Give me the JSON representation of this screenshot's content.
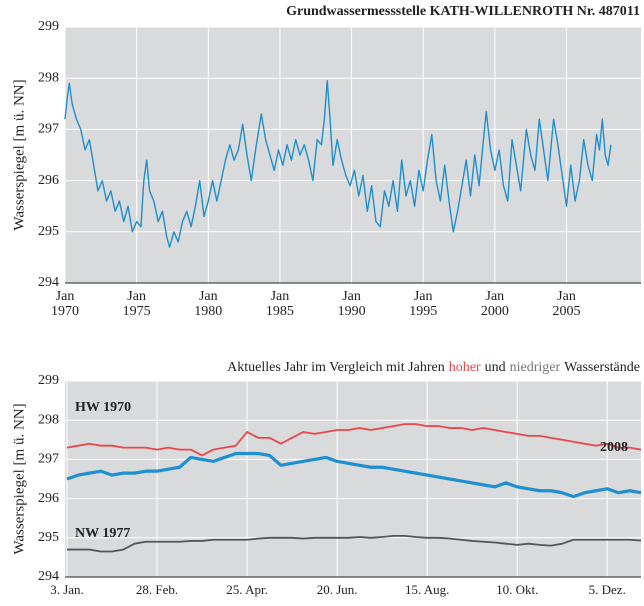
{
  "chart_data": [
    {
      "type": "line",
      "title": "Grundwassermessstelle KATH-WILLENROTH  Nr. 487011",
      "y_label": "Wasserspiegel  [m ü. NN]",
      "x": [
        1970.0,
        1970.15,
        1970.3,
        1970.5,
        1970.8,
        1971.1,
        1971.4,
        1971.7,
        1972.0,
        1972.3,
        1972.6,
        1972.9,
        1973.2,
        1973.5,
        1973.8,
        1974.1,
        1974.4,
        1974.7,
        1975.0,
        1975.3,
        1975.5,
        1975.7,
        1975.9,
        1976.2,
        1976.5,
        1976.8,
        1977.1,
        1977.3,
        1977.6,
        1977.9,
        1978.2,
        1978.5,
        1978.8,
        1979.1,
        1979.4,
        1979.7,
        1980.0,
        1980.3,
        1980.6,
        1980.9,
        1981.2,
        1981.5,
        1981.8,
        1982.1,
        1982.4,
        1982.7,
        1983.0,
        1983.3,
        1983.7,
        1984.0,
        1984.3,
        1984.6,
        1984.9,
        1985.2,
        1985.5,
        1985.8,
        1986.1,
        1986.4,
        1986.7,
        1987.0,
        1987.3,
        1987.6,
        1987.9,
        1988.1,
        1988.3,
        1988.5,
        1988.7,
        1989.0,
        1989.3,
        1989.6,
        1989.9,
        1990.2,
        1990.5,
        1990.8,
        1991.1,
        1991.4,
        1991.7,
        1992.0,
        1992.3,
        1992.6,
        1992.9,
        1993.2,
        1993.5,
        1993.8,
        1994.1,
        1994.4,
        1994.7,
        1995.0,
        1995.3,
        1995.6,
        1995.9,
        1996.2,
        1996.5,
        1996.8,
        1997.1,
        1997.4,
        1997.7,
        1998.0,
        1998.3,
        1998.6,
        1998.9,
        1999.1,
        1999.4,
        1999.7,
        2000.0,
        2000.3,
        2000.6,
        2000.9,
        2001.2,
        2001.5,
        2001.8,
        2002.2,
        2002.5,
        2002.8,
        2003.1,
        2003.4,
        2003.7,
        2004.1,
        2004.4,
        2004.7,
        2005.0,
        2005.3,
        2005.6,
        2005.9,
        2006.2,
        2006.5,
        2006.8,
        2007.1,
        2007.3,
        2007.5,
        2007.7,
        2007.9,
        2008.1
      ],
      "series": [
        {
          "color": "#1e8fd0",
          "values": [
            297.2,
            297.6,
            297.9,
            297.5,
            297.2,
            297.0,
            296.6,
            296.8,
            296.3,
            295.8,
            296.0,
            295.6,
            295.8,
            295.4,
            295.6,
            295.2,
            295.5,
            295.0,
            295.2,
            295.1,
            296.0,
            296.4,
            295.8,
            295.6,
            295.2,
            295.4,
            294.9,
            294.7,
            295.0,
            294.8,
            295.2,
            295.4,
            295.1,
            295.5,
            296.0,
            295.3,
            295.6,
            296.0,
            295.6,
            296.0,
            296.4,
            296.7,
            296.4,
            296.6,
            297.1,
            296.5,
            296.0,
            296.6,
            297.3,
            296.8,
            296.5,
            296.2,
            296.6,
            296.3,
            296.7,
            296.4,
            296.8,
            296.5,
            296.7,
            296.4,
            296.0,
            296.8,
            296.7,
            297.2,
            297.95,
            297.2,
            296.3,
            296.8,
            296.4,
            296.1,
            295.9,
            296.2,
            295.7,
            296.1,
            295.4,
            295.9,
            295.2,
            295.1,
            295.8,
            295.5,
            296.0,
            295.4,
            296.4,
            295.7,
            296.0,
            295.5,
            296.2,
            295.8,
            296.4,
            296.9,
            296.0,
            295.6,
            296.3,
            295.6,
            295.0,
            295.4,
            295.9,
            296.4,
            295.7,
            296.5,
            295.9,
            296.5,
            297.35,
            296.6,
            296.2,
            296.6,
            295.9,
            295.6,
            296.8,
            296.3,
            295.8,
            297.0,
            296.5,
            296.2,
            297.2,
            296.6,
            296.0,
            297.2,
            296.7,
            296.1,
            295.5,
            296.3,
            295.6,
            296.0,
            296.8,
            296.3,
            296.0,
            296.9,
            296.6,
            297.2,
            296.5,
            296.3,
            296.7
          ]
        }
      ],
      "xlim": [
        1970,
        2010.2
      ],
      "xticks": [
        {
          "value": 1970,
          "label": [
            "Jan",
            "1970"
          ]
        },
        {
          "value": 1975,
          "label": [
            "Jan",
            "1975"
          ]
        },
        {
          "value": 1980,
          "label": [
            "Jan",
            "1980"
          ]
        },
        {
          "value": 1985,
          "label": [
            "Jan",
            "1985"
          ]
        },
        {
          "value": 1990,
          "label": [
            "Jan",
            "1990"
          ]
        },
        {
          "value": 1995,
          "label": [
            "Jan",
            "1995"
          ]
        },
        {
          "value": 2000,
          "label": [
            "Jan",
            "2000"
          ]
        },
        {
          "value": 2005,
          "label": [
            "Jan",
            "2005"
          ]
        }
      ],
      "ylim": [
        294,
        299
      ],
      "yticks": [
        294,
        295,
        296,
        297,
        298,
        299
      ],
      "grid": true
    },
    {
      "type": "line",
      "subtitle": [
        "Aktuelles Jahr im Vergleich mit Jahren",
        "hoher",
        "und",
        "niedriger",
        "Wasserstände"
      ],
      "y_label": "Wasserspiegel  [m ü. NN]",
      "categories": [
        "3. Jan.",
        null,
        null,
        null,
        null,
        null,
        null,
        null,
        "28. Feb.",
        null,
        null,
        null,
        null,
        null,
        null,
        null,
        "25. Apr.",
        null,
        null,
        null,
        null,
        null,
        null,
        null,
        "20. Jun.",
        null,
        null,
        null,
        null,
        null,
        null,
        null,
        "15. Aug.",
        null,
        null,
        null,
        null,
        null,
        null,
        null,
        "10. Okt.",
        null,
        null,
        null,
        null,
        null,
        null,
        null,
        "5. Dez.",
        null,
        null,
        null
      ],
      "series": [
        {
          "name": "HW 1970",
          "color": "#e8474b",
          "values": [
            297.3,
            297.35,
            297.4,
            297.35,
            297.35,
            297.3,
            297.3,
            297.3,
            297.25,
            297.3,
            297.25,
            297.25,
            297.1,
            297.25,
            297.3,
            297.35,
            297.7,
            297.55,
            297.55,
            297.4,
            297.55,
            297.7,
            297.65,
            297.7,
            297.75,
            297.75,
            297.8,
            297.75,
            297.8,
            297.85,
            297.9,
            297.9,
            297.85,
            297.85,
            297.8,
            297.8,
            297.75,
            297.8,
            297.75,
            297.7,
            297.65,
            297.6,
            297.6,
            297.55,
            297.5,
            297.45,
            297.4,
            297.35,
            297.4,
            297.3,
            297.3,
            297.25
          ]
        },
        {
          "name": "2008",
          "color": "#1e8fd0",
          "values": [
            296.5,
            296.6,
            296.65,
            296.7,
            296.6,
            296.65,
            296.65,
            296.7,
            296.7,
            296.75,
            296.8,
            297.05,
            297.0,
            296.95,
            297.05,
            297.15,
            297.15,
            297.15,
            297.1,
            296.85,
            296.9,
            296.95,
            297.0,
            297.05,
            296.95,
            296.9,
            296.85,
            296.8,
            296.8,
            296.75,
            296.7,
            296.65,
            296.6,
            296.55,
            296.5,
            296.45,
            296.4,
            296.35,
            296.3,
            296.4,
            296.3,
            296.25,
            296.2,
            296.2,
            296.15,
            296.05,
            296.15,
            296.2,
            296.25,
            296.15,
            296.2,
            296.15
          ]
        },
        {
          "name": "NW 1977",
          "color": "#555555",
          "values": [
            294.7,
            294.7,
            294.7,
            294.65,
            294.65,
            294.7,
            294.85,
            294.9,
            294.9,
            294.9,
            294.9,
            294.92,
            294.92,
            294.95,
            294.95,
            294.95,
            294.95,
            294.98,
            295.0,
            295.0,
            295.0,
            294.98,
            295.0,
            295.0,
            295.0,
            295.0,
            295.02,
            295.0,
            295.02,
            295.05,
            295.05,
            295.02,
            295.0,
            295.0,
            294.98,
            294.95,
            294.92,
            294.9,
            294.88,
            294.85,
            294.82,
            294.85,
            294.82,
            294.8,
            294.85,
            294.95,
            294.95,
            294.95,
            294.95,
            294.95,
            294.95,
            294.93
          ]
        }
      ],
      "ylim": [
        294,
        299
      ],
      "yticks": [
        294,
        295,
        296,
        297,
        298,
        299
      ],
      "grid": true
    }
  ]
}
